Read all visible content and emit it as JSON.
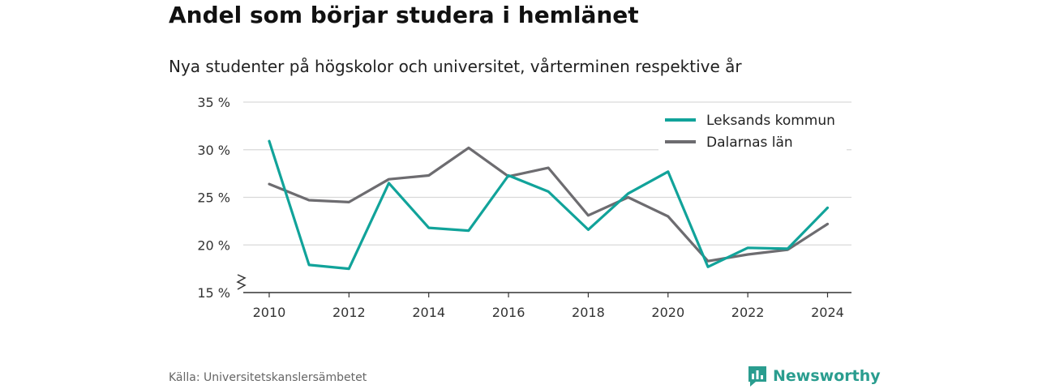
{
  "title": "Andel som börjar studera i hemlänet",
  "subtitle": "Nya studenter på högskolor och universitet, vårterminen respektive år",
  "source": "Källa: Universitetskanslersämbetet",
  "brand": {
    "name": "Newsworthy",
    "color": "#2a9d8f",
    "icon": "bar-chart-speech-icon"
  },
  "chart_data": {
    "type": "line",
    "x": [
      2010,
      2011,
      2012,
      2013,
      2014,
      2015,
      2016,
      2017,
      2018,
      2019,
      2020,
      2021,
      2022,
      2023,
      2024
    ],
    "xticks": [
      2010,
      2012,
      2014,
      2016,
      2018,
      2020,
      2022,
      2024
    ],
    "ylim": [
      15,
      35
    ],
    "yticks": [
      15,
      20,
      25,
      30,
      35
    ],
    "ytick_labels": [
      "15 %",
      "20 %",
      "25 %",
      "30 %",
      "35 %"
    ],
    "axis_break": true,
    "grid": true,
    "legend_position": "top-right",
    "series": [
      {
        "name": "Leksands kommun",
        "color": "#11a39a",
        "values": [
          30.9,
          17.9,
          17.5,
          26.5,
          21.8,
          21.5,
          27.3,
          25.6,
          21.6,
          25.4,
          27.7,
          17.7,
          19.7,
          19.6,
          23.9
        ]
      },
      {
        "name": "Dalarnas län",
        "color": "#6d6c70",
        "values": [
          26.4,
          24.7,
          24.5,
          26.9,
          27.3,
          30.2,
          27.2,
          28.1,
          23.1,
          25.0,
          23.0,
          18.3,
          19.0,
          19.5,
          22.2
        ]
      }
    ]
  }
}
